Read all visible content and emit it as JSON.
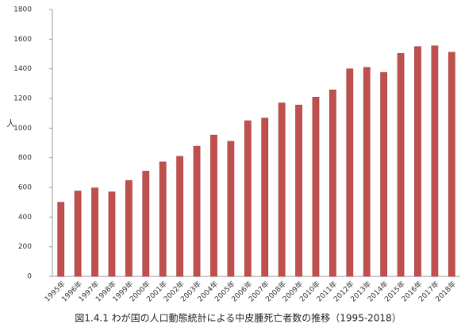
{
  "chart_data": {
    "type": "bar",
    "title": "図1.4.1 わが国の人口動態統計による中皮腫死亡者数の推移（1995-2018）",
    "y_label": "人",
    "categories": [
      "1995年",
      "1996年",
      "1997年",
      "1998年",
      "1999年",
      "2000年",
      "2001年",
      "2002年",
      "2003年",
      "2004年",
      "2005年",
      "2006年",
      "2007年",
      "2008年",
      "2009年",
      "2010年",
      "2011年",
      "2012年",
      "2013年",
      "2014年",
      "2015年",
      "2016年",
      "2017年",
      "2018年"
    ],
    "values": [
      500,
      576,
      597,
      570,
      647,
      710,
      772,
      810,
      878,
      953,
      911,
      1050,
      1068,
      1170,
      1156,
      1209,
      1258,
      1400,
      1410,
      1376,
      1504,
      1550,
      1555,
      1512
    ],
    "color": "#c0504d",
    "ylim": [
      0,
      1800
    ],
    "yticks": [
      0,
      200,
      400,
      600,
      800,
      1000,
      1200,
      1400,
      1600,
      1800
    ],
    "grid": false
  }
}
